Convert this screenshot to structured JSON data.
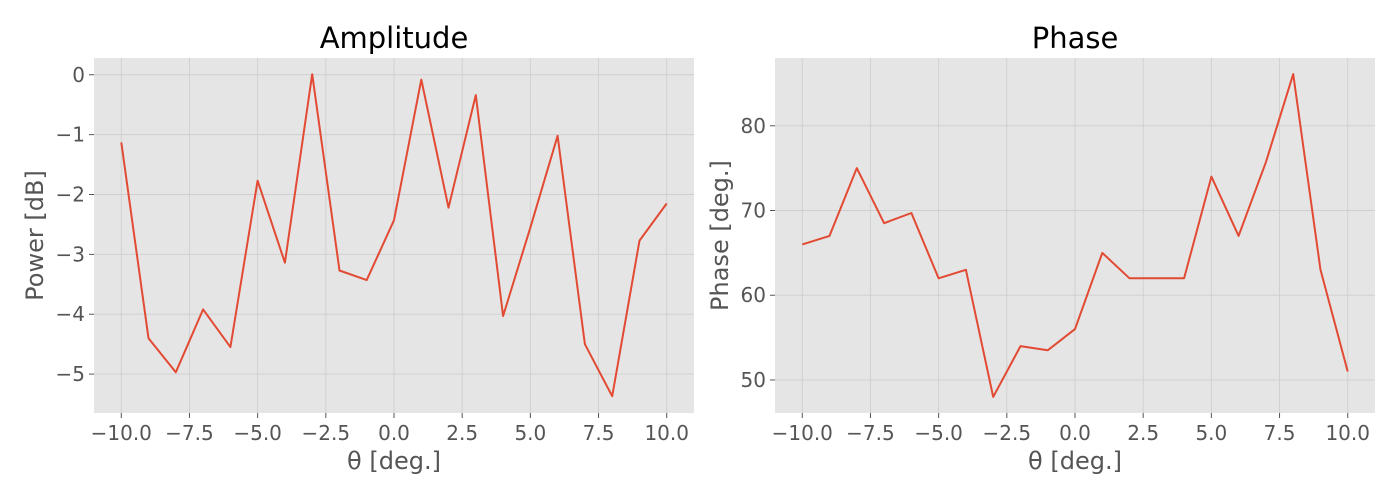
{
  "chart_data": [
    {
      "type": "line",
      "title": "Amplitude",
      "xlabel": "θ [deg.]",
      "ylabel": "Power [dB]",
      "xlim": [
        -11,
        11
      ],
      "ylim": [
        -5.65,
        0.28
      ],
      "xticks": [
        -10.0,
        -7.5,
        -5.0,
        -2.5,
        0.0,
        2.5,
        5.0,
        7.5,
        10.0
      ],
      "xtick_labels": [
        "−10.0",
        "−7.5",
        "−5.0",
        "−2.5",
        "0.0",
        "2.5",
        "5.0",
        "7.5",
        "10.0"
      ],
      "yticks": [
        0,
        -1,
        -2,
        -3,
        -4,
        -5
      ],
      "ytick_labels": [
        "0",
        "−1",
        "−2",
        "−3",
        "−4",
        "−5"
      ],
      "grid": true,
      "color": "#e24a33",
      "x": [
        -10,
        -9,
        -8,
        -7,
        -6,
        -5,
        -4,
        -3,
        -2,
        -1,
        0,
        1,
        2,
        3,
        4,
        5,
        6,
        7,
        8,
        9,
        10
      ],
      "y": [
        -1.13,
        -4.4,
        -4.97,
        -3.92,
        -4.55,
        -1.77,
        -3.14,
        0.01,
        -3.27,
        -3.43,
        -2.43,
        -0.08,
        -2.22,
        -0.34,
        -4.03,
        -2.55,
        -1.02,
        -4.5,
        -5.37,
        -2.77,
        -2.15
      ]
    },
    {
      "type": "line",
      "title": "Phase",
      "xlabel": "θ [deg.]",
      "ylabel": "Phase [deg.]",
      "xlim": [
        -11,
        11
      ],
      "ylim": [
        46.1,
        88.0
      ],
      "xticks": [
        -10.0,
        -7.5,
        -5.0,
        -2.5,
        0.0,
        2.5,
        5.0,
        7.5,
        10.0
      ],
      "xtick_labels": [
        "−10.0",
        "−7.5",
        "−5.0",
        "−2.5",
        "0.0",
        "2.5",
        "5.0",
        "7.5",
        "10.0"
      ],
      "yticks": [
        50,
        60,
        70,
        80
      ],
      "ytick_labels": [
        "50",
        "60",
        "70",
        "80"
      ],
      "grid": true,
      "color": "#e24a33",
      "x": [
        -10,
        -9,
        -8,
        -7,
        -6,
        -5,
        -4,
        -3,
        -2,
        -1,
        0,
        1,
        2,
        3,
        4,
        5,
        6,
        7,
        8,
        9,
        10
      ],
      "y": [
        66.0,
        67.0,
        75.0,
        68.5,
        69.7,
        62.0,
        63.0,
        48.0,
        54.0,
        53.5,
        56.0,
        65.0,
        62.0,
        62.0,
        62.0,
        74.0,
        67.0,
        75.7,
        86.1,
        63.0,
        51.0
      ]
    }
  ]
}
